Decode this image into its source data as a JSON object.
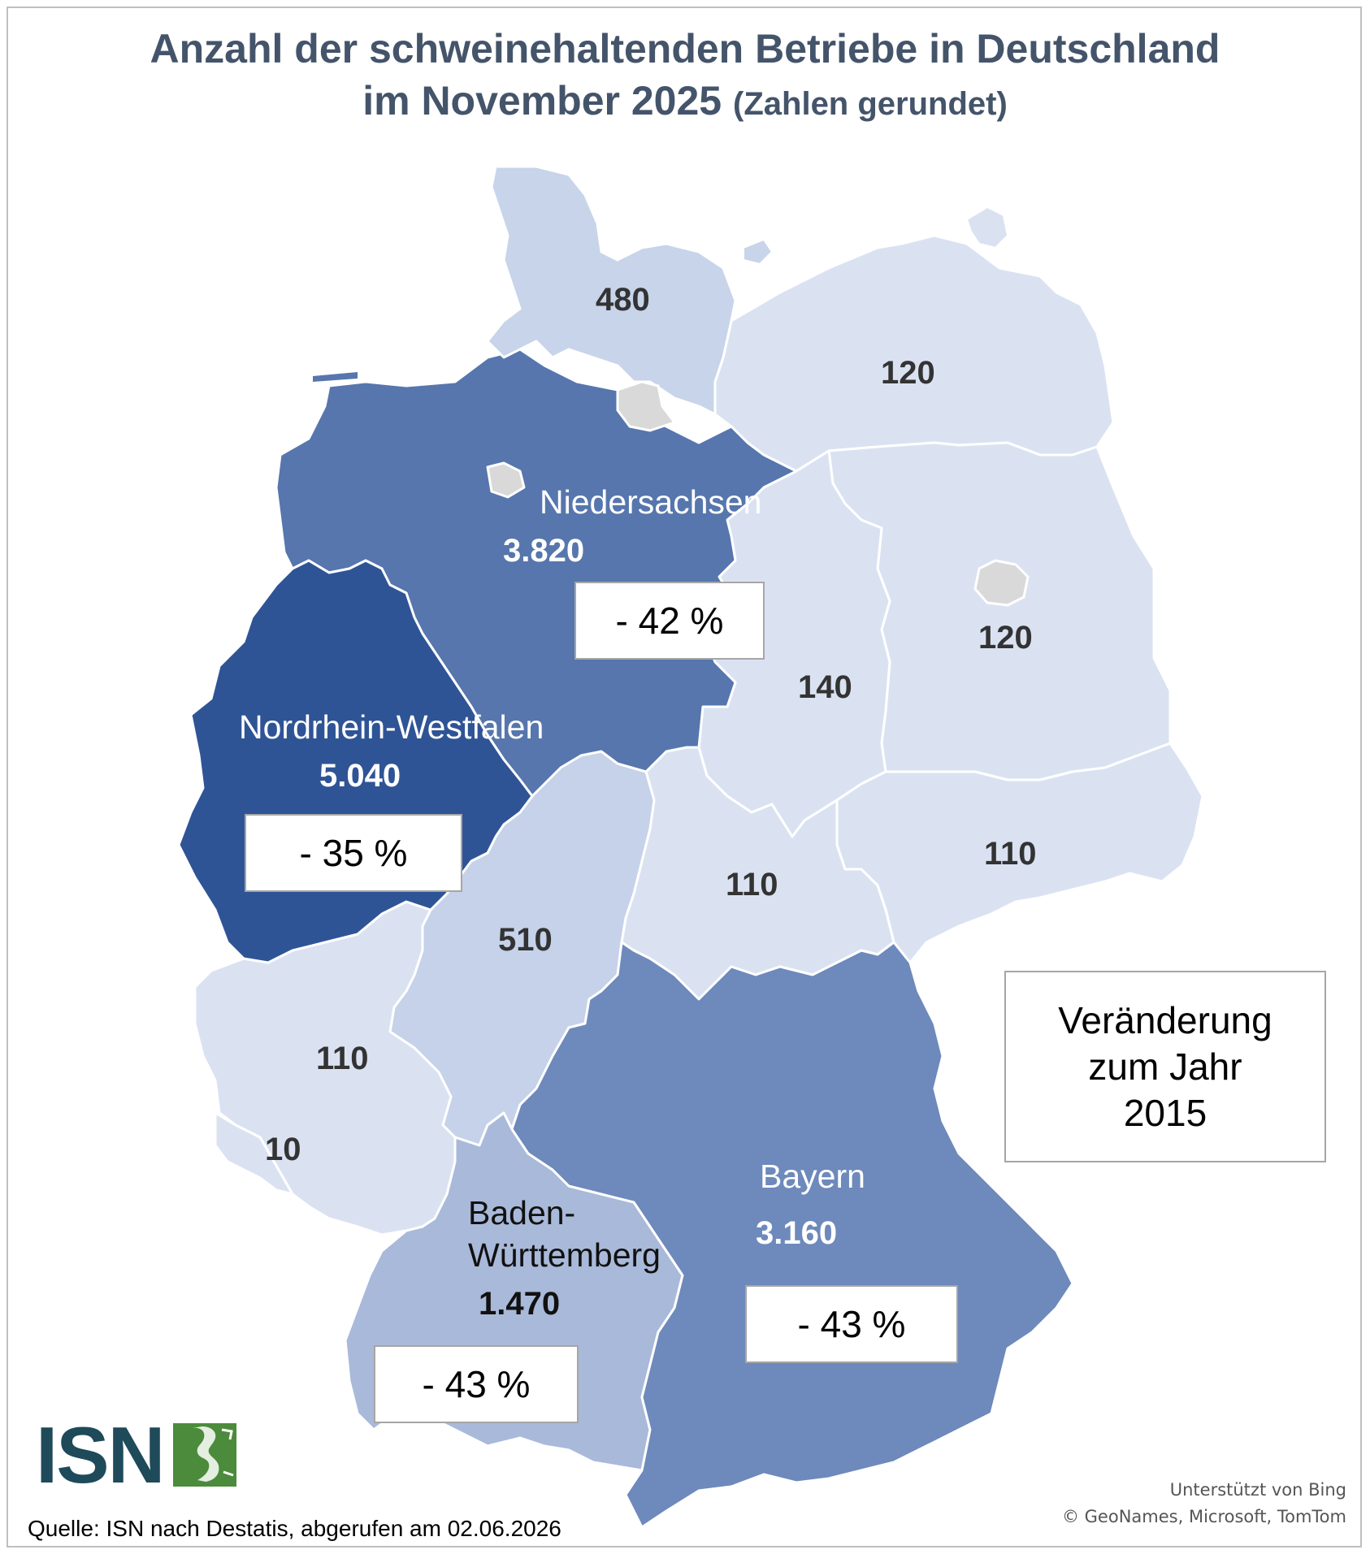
{
  "title": {
    "line1": "Anzahl der schweinehaltenden Betriebe in Deutschland",
    "line2_main": "im November 2025",
    "line2_sub": "(Zahlen gerundet)"
  },
  "colors": {
    "nrw": "#2f5496",
    "niedersachsen": "#5676ad",
    "bayern": "#6e89bb",
    "bw": "#a9b9d9",
    "sh": "#c7d4ea",
    "hessen": "#c5d2e9",
    "light": "#dae2f2",
    "city": "#d9d9d9"
  },
  "states": {
    "schleswig_holstein": {
      "value": "480"
    },
    "mecklenburg_vorpommern": {
      "value": "120"
    },
    "brandenburg": {
      "value": "120"
    },
    "sachsen_anhalt": {
      "value": "140"
    },
    "thueringen": {
      "value": "110"
    },
    "sachsen": {
      "value": "110"
    },
    "hessen": {
      "value": "510"
    },
    "rheinland_pfalz": {
      "value": "110"
    },
    "saarland": {
      "value": "10"
    },
    "niedersachsen": {
      "name": "Niedersachsen",
      "value": "3.820",
      "change": "- 42 %"
    },
    "nordrhein_westfalen": {
      "name": "Nordrhein-Westfalen",
      "value": "5.040",
      "change": "- 35 %"
    },
    "bayern": {
      "name": "Bayern",
      "value": "3.160",
      "change": "- 43 %"
    },
    "baden_wuerttemberg": {
      "name_line1": "Baden-",
      "name_line2": "Württemberg",
      "value": "1.470",
      "change": "- 43 %"
    }
  },
  "legend": {
    "line1": "Veränderung",
    "line2": "zum Jahr",
    "line3": "2015"
  },
  "logo": {
    "text": "ISN"
  },
  "credits": {
    "line1": "Unterstützt von Bing",
    "line2": "© GeoNames, Microsoft, TomTom"
  },
  "source": "Quelle: ISN nach Destatis, abgerufen am 02.06.2026"
}
